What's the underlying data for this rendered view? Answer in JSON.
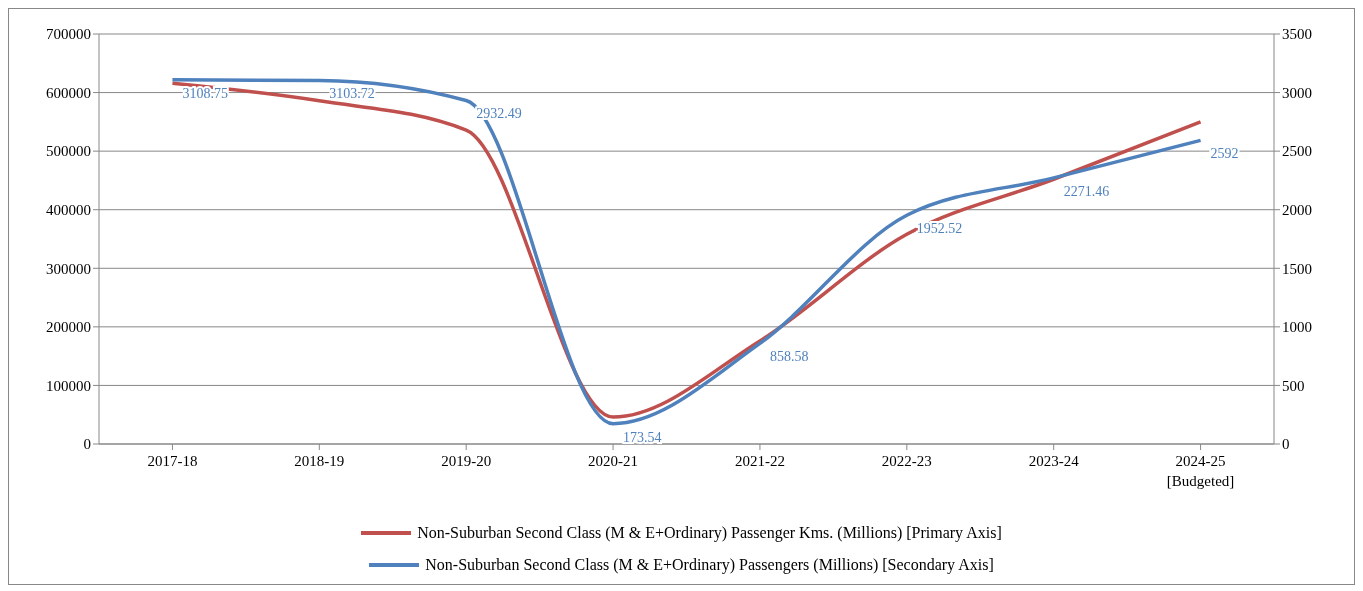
{
  "chart_data": {
    "type": "line",
    "categories": [
      "2017-18",
      "2018-19",
      "2019-20",
      "2020-21",
      "2021-22",
      "2022-23",
      "2023-24",
      "2024-25 [Budgeted]"
    ],
    "series": [
      {
        "name": "Non-Suburban Second Class (M & E+Ordinary) Passenger Kms. (Millions) [Primary Axis]",
        "color": "#c0504d",
        "values": [
          616000,
          586000,
          536000,
          46000,
          176000,
          358000,
          452000,
          550000
        ]
      },
      {
        "name": "Non-Suburban Second Class (M & E+Ordinary) Passengers (Millions) [Secondary Axis]",
        "color": "#4f81bd",
        "axis": "y2",
        "values": [
          3108.75,
          3103.72,
          2932.49,
          173.54,
          858.58,
          1952.52,
          2271.46,
          2592
        ],
        "value_labels": [
          "3108.75",
          "3103.72",
          "2932.49",
          "173.54",
          "858.58",
          "1952.52",
          "2271.46",
          "2592"
        ]
      }
    ],
    "ylim": [
      0,
      700000
    ],
    "yticks": [
      0,
      100000,
      200000,
      300000,
      400000,
      500000,
      600000,
      700000
    ],
    "y2lim": [
      0,
      3500
    ],
    "y2ticks": [
      0,
      500,
      1000,
      1500,
      2000,
      2500,
      3000,
      3500
    ],
    "grid": "y",
    "legend": "bottom",
    "marker": "none",
    "line_style": "solid"
  }
}
